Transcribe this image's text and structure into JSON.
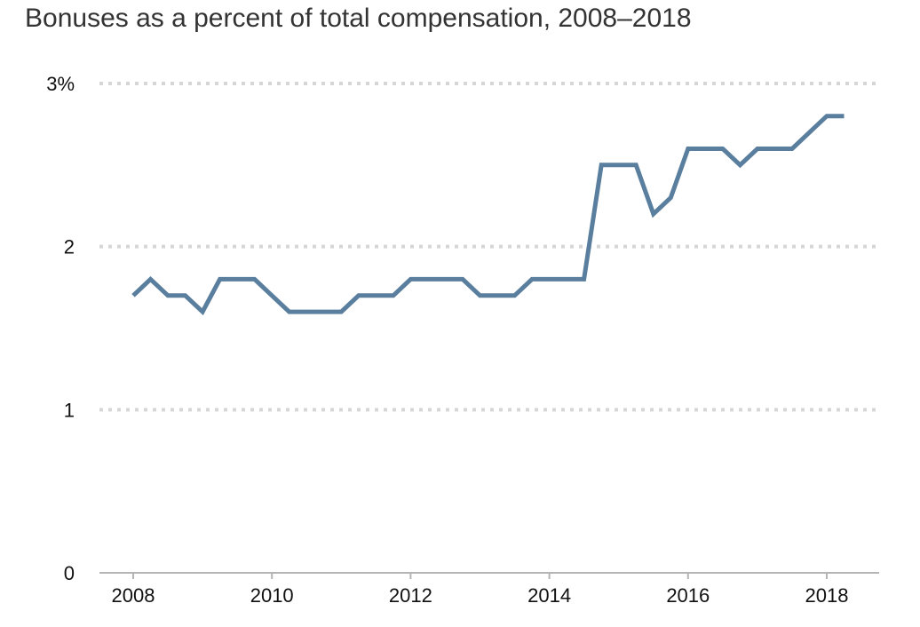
{
  "chart_data": {
    "type": "line",
    "title": "Bonuses as a percent of total compensation, 2008–2018",
    "xlabel": "",
    "ylabel": "",
    "xlim": [
      2007.5,
      2018.75
    ],
    "ylim": [
      0,
      3
    ],
    "x_ticks": [
      2008,
      2010,
      2012,
      2014,
      2016,
      2018
    ],
    "x_tick_labels": [
      "2008",
      "2010",
      "2012",
      "2014",
      "2016",
      "2018"
    ],
    "y_ticks": [
      0,
      1,
      2,
      3
    ],
    "y_tick_labels": [
      "0",
      "1",
      "2",
      "3%"
    ],
    "grid": "horizontal dotted",
    "series": [
      {
        "color": "#5a7f9e",
        "points": [
          [
            2008.0,
            1.7
          ],
          [
            2008.25,
            1.8
          ],
          [
            2008.5,
            1.7
          ],
          [
            2008.75,
            1.7
          ],
          [
            2009.0,
            1.6
          ],
          [
            2009.25,
            1.8
          ],
          [
            2009.5,
            1.8
          ],
          [
            2009.75,
            1.8
          ],
          [
            2010.0,
            1.7
          ],
          [
            2010.25,
            1.6
          ],
          [
            2010.5,
            1.6
          ],
          [
            2010.75,
            1.6
          ],
          [
            2011.0,
            1.6
          ],
          [
            2011.25,
            1.7
          ],
          [
            2011.5,
            1.7
          ],
          [
            2011.75,
            1.7
          ],
          [
            2012.0,
            1.8
          ],
          [
            2012.25,
            1.8
          ],
          [
            2012.5,
            1.8
          ],
          [
            2012.75,
            1.8
          ],
          [
            2013.0,
            1.7
          ],
          [
            2013.25,
            1.7
          ],
          [
            2013.5,
            1.7
          ],
          [
            2013.75,
            1.8
          ],
          [
            2014.0,
            1.8
          ],
          [
            2014.25,
            1.8
          ],
          [
            2014.5,
            1.8
          ],
          [
            2014.75,
            2.5
          ],
          [
            2015.0,
            2.5
          ],
          [
            2015.25,
            2.5
          ],
          [
            2015.5,
            2.2
          ],
          [
            2015.75,
            2.3
          ],
          [
            2016.0,
            2.6
          ],
          [
            2016.25,
            2.6
          ],
          [
            2016.5,
            2.6
          ],
          [
            2016.75,
            2.5
          ],
          [
            2017.0,
            2.6
          ],
          [
            2017.25,
            2.6
          ],
          [
            2017.5,
            2.6
          ],
          [
            2017.75,
            2.7
          ],
          [
            2018.0,
            2.8
          ],
          [
            2018.25,
            2.8
          ]
        ]
      }
    ]
  }
}
